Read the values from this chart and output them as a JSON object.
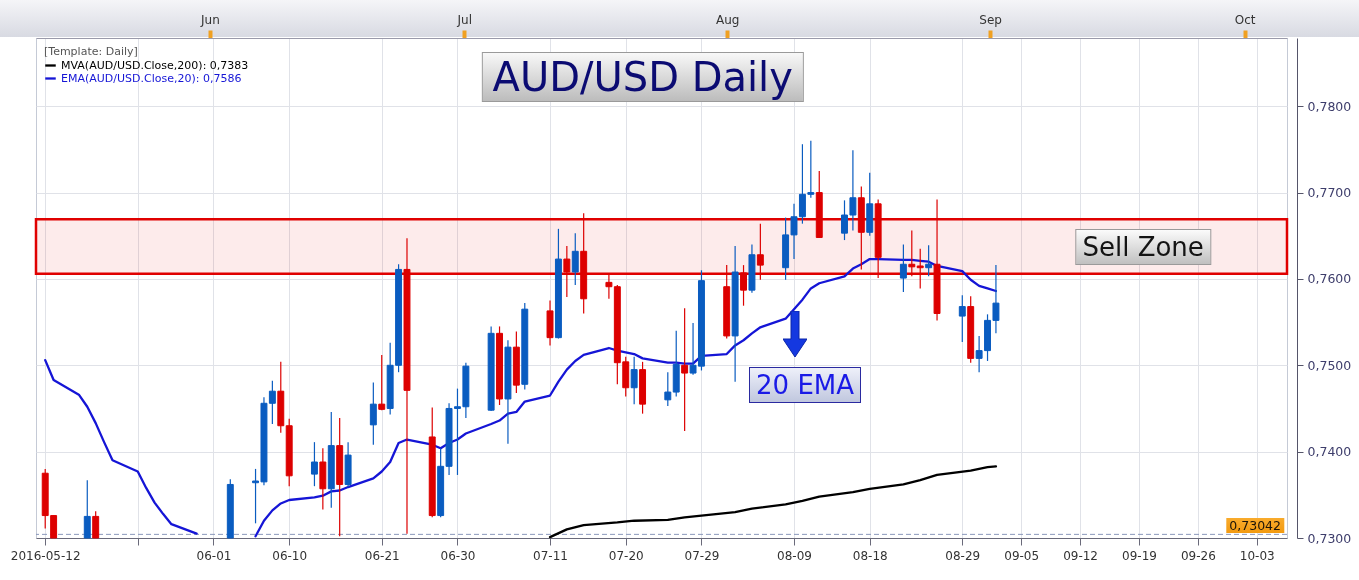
{
  "chart_data": {
    "type": "candlestick",
    "title": "AUD/USD Daily",
    "legend_title": "[Template: Daily]",
    "x": [
      "2016-05-12",
      "2016-05-13",
      "2016-05-17",
      "2016-05-18",
      "2016-06-03",
      "2016-06-06",
      "2016-06-07",
      "2016-06-08",
      "2016-06-09",
      "2016-06-10",
      "2016-06-13",
      "2016-06-14",
      "2016-06-15",
      "2016-06-16",
      "2016-06-17",
      "2016-06-20",
      "2016-06-21",
      "2016-06-22",
      "2016-06-23",
      "2016-06-24",
      "2016-06-27",
      "2016-06-28",
      "2016-06-29",
      "2016-06-30",
      "2016-07-01",
      "2016-07-04",
      "2016-07-05",
      "2016-07-06",
      "2016-07-07",
      "2016-07-08",
      "2016-07-11",
      "2016-07-12",
      "2016-07-13",
      "2016-07-14",
      "2016-07-15",
      "2016-07-18",
      "2016-07-19",
      "2016-07-20",
      "2016-07-21",
      "2016-07-22",
      "2016-07-25",
      "2016-07-26",
      "2016-07-27",
      "2016-07-28",
      "2016-07-29",
      "2016-08-01",
      "2016-08-02",
      "2016-08-03",
      "2016-08-04",
      "2016-08-05",
      "2016-08-08",
      "2016-08-09",
      "2016-08-10",
      "2016-08-11",
      "2016-08-12",
      "2016-08-15",
      "2016-08-16",
      "2016-08-17",
      "2016-08-18",
      "2016-08-19",
      "2016-08-22",
      "2016-08-23",
      "2016-08-24",
      "2016-08-25",
      "2016-08-26",
      "2016-08-29",
      "2016-08-30",
      "2016-08-31",
      "2016-09-01",
      "2016-09-02"
    ],
    "ohlc": [
      [
        0.7375,
        0.738,
        0.7311,
        0.7326
      ],
      [
        0.7326,
        0.7326,
        0.73,
        0.73
      ],
      [
        0.73,
        0.7367,
        0.73,
        0.7325
      ],
      [
        0.7325,
        0.7331,
        0.73,
        0.73
      ],
      [
        0.73,
        0.7368,
        0.73,
        0.7362
      ],
      [
        0.7364,
        0.738,
        0.7317,
        0.7366
      ],
      [
        0.7365,
        0.7463,
        0.7361,
        0.7456
      ],
      [
        0.7456,
        0.7482,
        0.7432,
        0.747
      ],
      [
        0.747,
        0.7504,
        0.7422,
        0.743
      ],
      [
        0.743,
        0.7438,
        0.736,
        0.7372
      ],
      [
        0.7374,
        0.7411,
        0.736,
        0.7388
      ],
      [
        0.7388,
        0.7404,
        0.7333,
        0.7357
      ],
      [
        0.7357,
        0.7446,
        0.7335,
        0.7407
      ],
      [
        0.7407,
        0.7439,
        0.7302,
        0.7362
      ],
      [
        0.7362,
        0.7411,
        0.7359,
        0.7396
      ],
      [
        0.7431,
        0.748,
        0.7408,
        0.7455
      ],
      [
        0.7455,
        0.7512,
        0.7448,
        0.7449
      ],
      [
        0.745,
        0.7526,
        0.7443,
        0.75
      ],
      [
        0.75,
        0.7617,
        0.7492,
        0.7611
      ],
      [
        0.7611,
        0.7647,
        0.7305,
        0.7471
      ],
      [
        0.7417,
        0.7451,
        0.7324,
        0.7326
      ],
      [
        0.7326,
        0.7404,
        0.7324,
        0.7383
      ],
      [
        0.7383,
        0.7456,
        0.7373,
        0.745
      ],
      [
        0.745,
        0.7473,
        0.7373,
        0.7452
      ],
      [
        0.7452,
        0.7503,
        0.7439,
        0.7499
      ],
      [
        0.7448,
        0.7545,
        0.7447,
        0.7537
      ],
      [
        0.7537,
        0.7545,
        0.7454,
        0.7461
      ],
      [
        0.7461,
        0.7529,
        0.7409,
        0.7521
      ],
      [
        0.7521,
        0.7539,
        0.7468,
        0.7477
      ],
      [
        0.7478,
        0.7572,
        0.7472,
        0.7565
      ],
      [
        0.7563,
        0.7575,
        0.7523,
        0.7532
      ],
      [
        0.7532,
        0.7658,
        0.7531,
        0.7623
      ],
      [
        0.7623,
        0.7638,
        0.7579,
        0.7608
      ],
      [
        0.7608,
        0.7653,
        0.7593,
        0.7632
      ],
      [
        0.7632,
        0.7676,
        0.756,
        0.7577
      ],
      [
        0.7596,
        0.7606,
        0.7577,
        0.7591
      ],
      [
        0.7591,
        0.7593,
        0.7478,
        0.7503
      ],
      [
        0.7504,
        0.751,
        0.7464,
        0.7474
      ],
      [
        0.7474,
        0.751,
        0.7455,
        0.7495
      ],
      [
        0.7495,
        0.7504,
        0.7444,
        0.7455
      ],
      [
        0.746,
        0.7492,
        0.7453,
        0.7469
      ],
      [
        0.7469,
        0.754,
        0.7464,
        0.7501
      ],
      [
        0.75,
        0.7566,
        0.7424,
        0.7491
      ],
      [
        0.7491,
        0.7549,
        0.7489,
        0.75
      ],
      [
        0.7499,
        0.761,
        0.7494,
        0.7598
      ],
      [
        0.7591,
        0.7616,
        0.7531,
        0.7534
      ],
      [
        0.7534,
        0.7638,
        0.7481,
        0.7608
      ],
      [
        0.7607,
        0.7616,
        0.7569,
        0.7587
      ],
      [
        0.7587,
        0.764,
        0.7584,
        0.7628
      ],
      [
        0.7628,
        0.7664,
        0.7599,
        0.7616
      ],
      [
        0.7613,
        0.7671,
        0.7599,
        0.7651
      ],
      [
        0.7651,
        0.7687,
        0.7623,
        0.7672
      ],
      [
        0.7672,
        0.7756,
        0.7664,
        0.7698
      ],
      [
        0.7698,
        0.776,
        0.7694,
        0.77
      ],
      [
        0.77,
        0.7725,
        0.7648,
        0.7648
      ],
      [
        0.7653,
        0.7691,
        0.7645,
        0.7674
      ],
      [
        0.7674,
        0.7749,
        0.7656,
        0.7694
      ],
      [
        0.7694,
        0.7707,
        0.7611,
        0.7654
      ],
      [
        0.7654,
        0.7723,
        0.765,
        0.7687
      ],
      [
        0.7687,
        0.7692,
        0.7601,
        0.7625
      ],
      [
        0.7601,
        0.764,
        0.7585,
        0.7617
      ],
      [
        0.7617,
        0.7656,
        0.7603,
        0.7614
      ],
      [
        0.7615,
        0.7635,
        0.7589,
        0.7613
      ],
      [
        0.7613,
        0.7639,
        0.7603,
        0.7617
      ],
      [
        0.7617,
        0.7692,
        0.7552,
        0.756
      ],
      [
        0.7557,
        0.7581,
        0.7527,
        0.7568
      ],
      [
        0.7568,
        0.758,
        0.7503,
        0.7508
      ],
      [
        0.7508,
        0.7534,
        0.7492,
        0.7517
      ],
      [
        0.7517,
        0.7559,
        0.7505,
        0.7552
      ],
      [
        0.7552,
        0.7616,
        0.7537,
        0.7572
      ]
    ],
    "colors": [
      "#dd0000",
      "#dd0000",
      "#0a5cc0",
      "#dd0000",
      "#0a5cc0",
      "#0a5cc0",
      "#0a5cc0",
      "#0a5cc0",
      "#dd0000",
      "#dd0000",
      "#0a5cc0",
      "#dd0000",
      "#0a5cc0",
      "#dd0000",
      "#0a5cc0",
      "#0a5cc0",
      "#dd0000",
      "#0a5cc0",
      "#0a5cc0",
      "#dd0000",
      "#dd0000",
      "#0a5cc0",
      "#0a5cc0",
      "#0a5cc0",
      "#0a5cc0",
      "#0a5cc0",
      "#dd0000",
      "#0a5cc0",
      "#dd0000",
      "#0a5cc0",
      "#dd0000",
      "#0a5cc0",
      "#dd0000",
      "#0a5cc0",
      "#dd0000",
      "#dd0000",
      "#dd0000",
      "#dd0000",
      "#0a5cc0",
      "#dd0000",
      "#0a5cc0",
      "#0a5cc0",
      "#dd0000",
      "#0a5cc0",
      "#0a5cc0",
      "#dd0000",
      "#0a5cc0",
      "#dd0000",
      "#0a5cc0",
      "#dd0000",
      "#0a5cc0",
      "#0a5cc0",
      "#0a5cc0",
      "#0a5cc0",
      "#dd0000",
      "#0a5cc0",
      "#0a5cc0",
      "#dd0000",
      "#0a5cc0",
      "#dd0000",
      "#0a5cc0",
      "#dd0000",
      "#dd0000",
      "#0a5cc0",
      "#dd0000",
      "#0a5cc0",
      "#dd0000",
      "#0a5cc0",
      "#0a5cc0",
      "#0a5cc0"
    ],
    "series": [
      {
        "name": "MVA(AUD/USD.Close,200): 0,7383",
        "type": "line",
        "color": "#000000",
        "x": [
          "2016-07-11",
          "2016-07-13",
          "2016-07-15",
          "2016-07-19",
          "2016-07-21",
          "2016-07-25",
          "2016-07-27",
          "2016-07-29",
          "2016-08-02",
          "2016-08-04",
          "2016-08-08",
          "2016-08-10",
          "2016-08-12",
          "2016-08-16",
          "2016-08-18",
          "2016-08-22",
          "2016-08-24",
          "2016-08-26",
          "2016-08-30",
          "2016-09-01",
          "2016-09-02"
        ],
        "values": [
          0.7301,
          0.731,
          0.7315,
          0.7318,
          0.732,
          0.7321,
          0.7324,
          0.7326,
          0.733,
          0.7334,
          0.7339,
          0.7343,
          0.7348,
          0.7353,
          0.7357,
          0.7362,
          0.7367,
          0.7373,
          0.7378,
          0.7382,
          0.7383
        ]
      },
      {
        "name": "EMA(AUD/USD.Close,20): 0,7586",
        "type": "line",
        "color": "#1515d6",
        "x": [
          "2016-05-12",
          "2016-05-13",
          "2016-05-16",
          "2016-05-17",
          "2016-05-18",
          "2016-05-19",
          "2016-05-20",
          "2016-05-23",
          "2016-05-24",
          "2016-05-25",
          "2016-05-26",
          "2016-05-27",
          "2016-05-30",
          "2016-05-31",
          "2016-06-01",
          "2016-06-02",
          "2016-06-03",
          "2016-06-06",
          "2016-06-07",
          "2016-06-08",
          "2016-06-09",
          "2016-06-10",
          "2016-06-13",
          "2016-06-14",
          "2016-06-15",
          "2016-06-16",
          "2016-06-17",
          "2016-06-20",
          "2016-06-21",
          "2016-06-22",
          "2016-06-23",
          "2016-06-24",
          "2016-06-27",
          "2016-06-28",
          "2016-06-29",
          "2016-06-30",
          "2016-07-01",
          "2016-07-04",
          "2016-07-05",
          "2016-07-06",
          "2016-07-07",
          "2016-07-08",
          "2016-07-11",
          "2016-07-12",
          "2016-07-13",
          "2016-07-14",
          "2016-07-15",
          "2016-07-18",
          "2016-07-19",
          "2016-07-20",
          "2016-07-21",
          "2016-07-22",
          "2016-07-25",
          "2016-07-26",
          "2016-07-27",
          "2016-07-28",
          "2016-07-29",
          "2016-08-01",
          "2016-08-02",
          "2016-08-03",
          "2016-08-04",
          "2016-08-05",
          "2016-08-08",
          "2016-08-09",
          "2016-08-10",
          "2016-08-11",
          "2016-08-12",
          "2016-08-15",
          "2016-08-16",
          "2016-08-17",
          "2016-08-18",
          "2016-08-19",
          "2016-08-22",
          "2016-08-23",
          "2016-08-24",
          "2016-08-25",
          "2016-08-26",
          "2016-08-29",
          "2016-08-30",
          "2016-08-31",
          "2016-09-01",
          "2016-09-02"
        ],
        "values": [
          0.7506,
          0.7483,
          0.7466,
          0.7452,
          0.7433,
          0.7411,
          0.739,
          0.7377,
          0.7358,
          0.7341,
          0.7328,
          0.7316,
          0.7305,
          null,
          null,
          null,
          null,
          0.7302,
          0.732,
          0.7332,
          0.734,
          0.7344,
          0.7347,
          0.7349,
          0.7354,
          0.7355,
          0.7359,
          0.7369,
          0.7377,
          0.7388,
          0.741,
          0.7414,
          0.7408,
          0.7404,
          0.741,
          0.7414,
          0.7421,
          0.7432,
          0.7436,
          0.7444,
          0.7446,
          0.7458,
          0.7465,
          0.7481,
          0.7495,
          0.7505,
          0.7512,
          0.752,
          0.7517,
          0.7515,
          0.7513,
          0.7508,
          0.7503,
          0.7503,
          0.7502,
          0.7502,
          0.7511,
          0.7513,
          0.7523,
          0.7529,
          0.7537,
          0.7544,
          0.7554,
          0.7565,
          0.7576,
          0.7589,
          0.7595,
          0.7603,
          0.7612,
          0.7617,
          0.7623,
          0.7623,
          0.7622,
          0.7622,
          0.7621,
          0.762,
          0.7615,
          0.7609,
          0.7599,
          0.7592,
          0.7589,
          0.7586
        ]
      }
    ],
    "xlim": [
      "2016-05-11T12:00",
      "2016-10-06"
    ],
    "xticks": [
      {
        "value": "2016-05-12",
        "label": "2016-05-12"
      },
      {
        "value": "2016-05-23",
        "label": null
      },
      {
        "value": "2016-06-01",
        "label": "06-01"
      },
      {
        "value": "2016-06-10",
        "label": "06-10"
      },
      {
        "value": "2016-06-21",
        "label": "06-21"
      },
      {
        "value": "2016-06-30",
        "label": "06-30"
      },
      {
        "value": "2016-07-11",
        "label": "07-11"
      },
      {
        "value": "2016-07-20",
        "label": "07-20"
      },
      {
        "value": "2016-07-29",
        "label": "07-29"
      },
      {
        "value": "2016-08-09",
        "label": "08-09"
      },
      {
        "value": "2016-08-18",
        "label": "08-18"
      },
      {
        "value": "2016-08-29",
        "label": "08-29"
      },
      {
        "value": "2016-09-05",
        "label": "09-05"
      },
      {
        "value": "2016-09-12",
        "label": "09-12"
      },
      {
        "value": "2016-09-19",
        "label": "09-19"
      },
      {
        "value": "2016-09-26",
        "label": "09-26"
      },
      {
        "value": "2016-10-03",
        "label": "10-03"
      }
    ],
    "x2lim": [
      "2016-05-11T12:00",
      "2016-10-06"
    ],
    "x2ticks": [
      {
        "value": "2016-06-01",
        "label": "Jun"
      },
      {
        "value": "2016-07-01",
        "label": "Jul"
      },
      {
        "value": "2016-08-01",
        "label": "Aug"
      },
      {
        "value": "2016-09-01",
        "label": "Sep"
      },
      {
        "value": "2016-10-01",
        "label": "Oct"
      }
    ],
    "ylim": [
      0.73,
      0.7879
    ],
    "yticks": [
      {
        "value": 0.73,
        "label": "0,7300"
      },
      {
        "value": 0.74,
        "label": "0,7400"
      },
      {
        "value": 0.75,
        "label": "0,7500"
      },
      {
        "value": 0.76,
        "label": "0,7600"
      },
      {
        "value": 0.77,
        "label": "0,7700"
      },
      {
        "value": 0.78,
        "label": "0,7800"
      }
    ],
    "grid": true,
    "legend": "top left",
    "ref_lines": [
      {
        "axis": "y",
        "value": 0.73042,
        "label": "0,73042",
        "line_style": "dashed"
      }
    ],
    "bands": [
      {
        "axis": "y",
        "from": 0.7606,
        "to": 0.7669,
        "label": "Sell Zone",
        "color": "#e00000"
      }
    ],
    "annotations": [
      {
        "text": "20 EMA",
        "x": "2016-08-09",
        "y": 0.7565
      }
    ]
  }
}
